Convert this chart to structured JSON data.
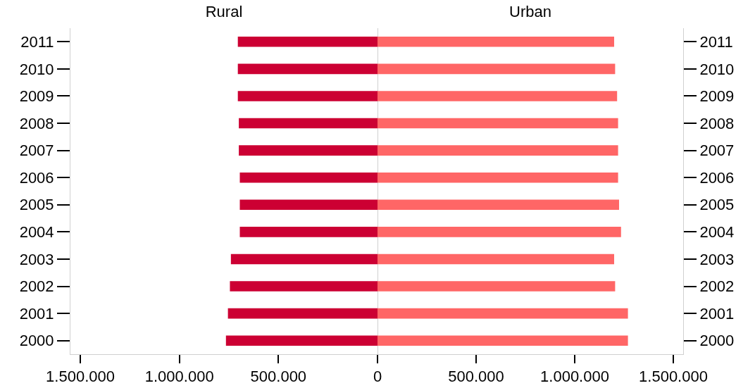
{
  "chart_data": [
    {
      "type": "bar",
      "orientation": "horizontal",
      "title": "Rural",
      "categories": [
        "2011",
        "2010",
        "2009",
        "2008",
        "2007",
        "2006",
        "2005",
        "2004",
        "2003",
        "2002",
        "2001",
        "2000"
      ],
      "series": [
        {
          "color": "#cc0033",
          "values": [
            705000,
            705000,
            705000,
            700000,
            700000,
            695000,
            695000,
            695000,
            740000,
            745000,
            755000,
            765000
          ]
        }
      ],
      "xlim": [
        1550000,
        0
      ],
      "xticks": [
        {
          "value": 1500000,
          "label": "1.500.000"
        },
        {
          "value": 1000000,
          "label": "1.000.000"
        },
        {
          "value": 500000,
          "label": "500.000"
        },
        0
      ]
    },
    {
      "type": "bar",
      "orientation": "horizontal",
      "title": "Urban",
      "categories": [
        "2011",
        "2010",
        "2009",
        "2008",
        "2007",
        "2006",
        "2005",
        "2004",
        "2003",
        "2002",
        "2001",
        "2000"
      ],
      "series": [
        {
          "color": "#ff6666",
          "values": [
            1200000,
            1205000,
            1215000,
            1220000,
            1220000,
            1220000,
            1225000,
            1235000,
            1200000,
            1205000,
            1270000,
            1270000
          ]
        }
      ],
      "xlim": [
        0,
        1550000
      ],
      "xticks": [
        {
          "value": 0,
          "label": null
        },
        {
          "value": 500000,
          "label": "500.000"
        },
        {
          "value": 1000000,
          "label": "1.000.000"
        },
        {
          "value": 1500000,
          "label": "1.500.000"
        }
      ]
    }
  ]
}
